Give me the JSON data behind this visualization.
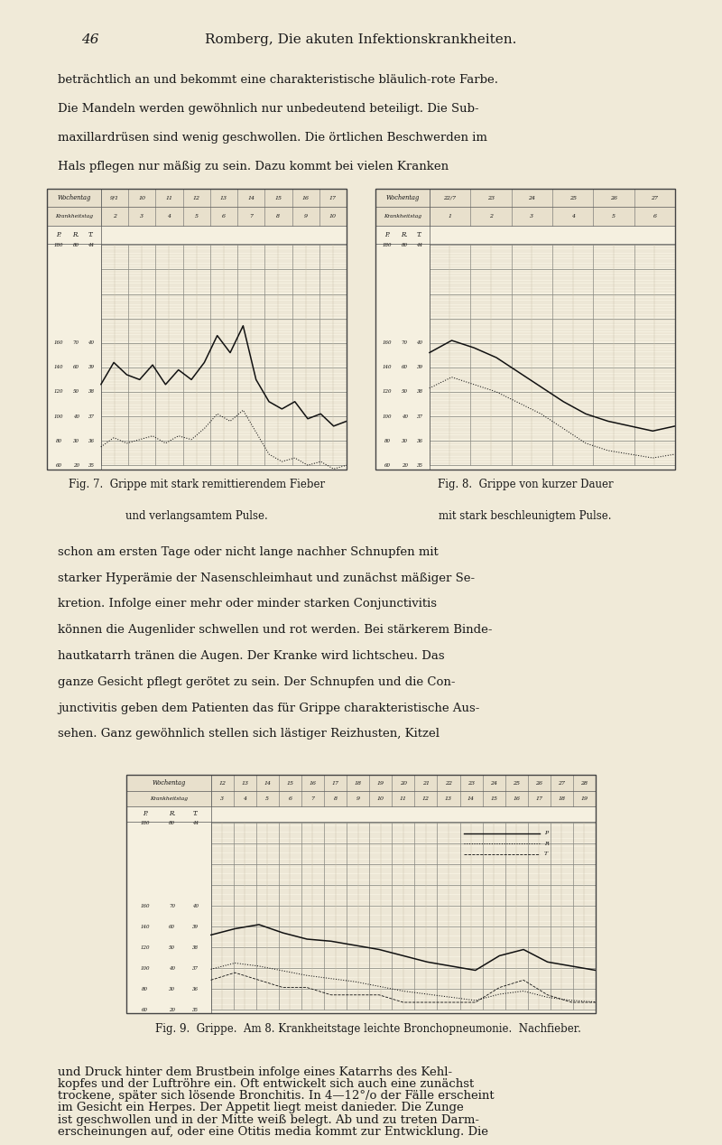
{
  "page_bg": "#f0ead8",
  "text_color": "#1a1a1a",
  "page_number": "46",
  "header": "Romberg, Die akuten Infektionskrankheiten.",
  "para1": "beträchtlich an und bekommt eine charakteristische bläulich-rote Farbe.\nDie Mandeln werden gewöhnlich nur unbedeutend beteiligt. Die Sub-\nmaxillardrüsen sind wenig geschwollen. Die örtlichen Beschwerden im\nHals pflegen nur mäßig zu sein. Dazu kommt bei vielen Kranken",
  "para2": "schon am ersten Tage oder nicht lange nachher Schnupfen mit\nstarker Hyperämie der Nasenschleimhaut und zunächst mäßiger Se-\nkretion. Infolge einer mehr oder minder starken Conjunctivitis\nkönnen die Augenlider schwellen und rot werden. Bei stärkerem Binde-\nhautkatarrh tränen die Augen. Der Kranke wird lichtscheu. Das\nganze Gesicht pflegt gerötet zu sein. Der Schnupfen und die Con-\njunctivitis geben dem Patienten das für Grippe charakteristische Aus-\nsehen. Ganz gewöhnlich stellen sich lästiger Reizhusten, Kitzel",
  "para3": "und Druck hinter dem Brustbein infolge eines Katarrhs des Kehl-\nkopfes und der Luftröhre ein. Oft entwickelt sich auch eine zunächst\ntrockene, später sich lösende Bronchitis. In 4—12°/o der Fälle erscheint\nim Gesicht ein Herpes. Der Appetit liegt meist danieder. Die Zunge\nist geschwollen und in der Mitte weiß belegt. Ab und zu treten Darm-\nerscheinungen auf, oder eine Otitis media kommt zur Entwicklung. Die",
  "fig7_caption_line1": "Fig. 7.  Grippe mit stark remittierendem Fieber",
  "fig7_caption_line2": "und verlangsamtem Pulse.",
  "fig8_caption_line1": "Fig. 8.  Grippe von kurzer Dauer",
  "fig8_caption_line2": "mit stark beschleunigtem Pulse.",
  "fig9_caption": "Fig. 9.  Grippe.  Am 8. Krankheitstage leichte Bronchopneumonie.  Nachfieber.",
  "chart_line_color": "#111111",
  "chart_grid_minor": "#c8c0a8",
  "chart_grid_major": "#888880",
  "chart_bg": "#f5f0e0",
  "chart_header_bg": "#e8e0cc",
  "fig7": {
    "wochentag": [
      "9/1",
      "10",
      "11",
      "12",
      "13",
      "14",
      "15",
      "16",
      "17"
    ],
    "kranktag": [
      "2",
      "3",
      "4",
      "5",
      "6",
      "7",
      "8",
      "9",
      "10"
    ],
    "temp_y": [
      38.3,
      39.2,
      38.7,
      38.5,
      39.1,
      38.3,
      38.9,
      38.5,
      39.2,
      40.3,
      39.6,
      40.7,
      38.5,
      37.6,
      37.3,
      37.6,
      36.9,
      37.1,
      36.6,
      36.8
    ],
    "pulse_y": [
      70,
      75,
      72,
      74,
      76,
      72,
      76,
      74,
      80,
      88,
      84,
      90,
      78,
      66,
      62,
      64,
      60,
      62,
      58,
      60
    ]
  },
  "fig8": {
    "wochentag": [
      "22/7",
      "23",
      "24",
      "25",
      "26",
      "27"
    ],
    "kranktag": [
      "1",
      "2",
      "3",
      "4",
      "5",
      "6"
    ],
    "temp_y": [
      39.6,
      40.1,
      39.8,
      39.4,
      38.8,
      38.2,
      37.6,
      37.1,
      36.8,
      36.6,
      36.4,
      36.6
    ],
    "pulse_y": [
      102,
      108,
      104,
      100,
      94,
      88,
      80,
      72,
      68,
      66,
      64,
      66
    ]
  },
  "fig9": {
    "wochentag": [
      "12",
      "13",
      "14",
      "15",
      "16",
      "17",
      "18",
      "19",
      "20",
      "21",
      "22",
      "23",
      "24",
      "25",
      "26",
      "27",
      "28"
    ],
    "kranktag": [
      "3",
      "4",
      "5",
      "6",
      "7",
      "8",
      "9",
      "10",
      "11",
      "12",
      "13",
      "14",
      "15",
      "16",
      "17",
      "18",
      "19"
    ],
    "temp_y": [
      38.6,
      38.9,
      39.1,
      38.7,
      38.4,
      38.3,
      38.1,
      37.9,
      37.6,
      37.3,
      37.1,
      36.9,
      37.6,
      37.9,
      37.3,
      37.1,
      36.9
    ],
    "pulse_y": [
      86,
      90,
      88,
      85,
      82,
      80,
      78,
      75,
      72,
      70,
      68,
      66,
      70,
      72,
      68,
      66,
      65
    ],
    "resp_y": [
      22,
      24,
      22,
      20,
      20,
      18,
      18,
      18,
      16,
      16,
      16,
      16,
      20,
      22,
      18,
      16,
      16
    ]
  },
  "ylabels": [
    {
      "t": 44,
      "p": 180,
      "r": 80
    },
    {
      "t": 40,
      "p": 160,
      "r": 70
    },
    {
      "t": 39,
      "p": 140,
      "r": 60
    },
    {
      "t": 38,
      "p": 120,
      "r": 50
    },
    {
      "t": 37,
      "p": 100,
      "r": 40
    },
    {
      "t": 36,
      "p": 80,
      "r": 30
    },
    {
      "t": 35,
      "p": 60,
      "r": 20
    }
  ]
}
